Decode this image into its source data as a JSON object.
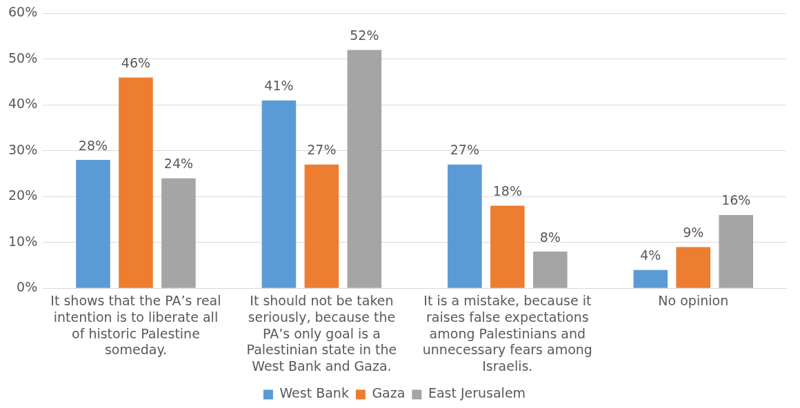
{
  "chart_data": {
    "type": "bar",
    "categories": [
      "It shows that the PA’s real intention is to liberate all of historic Palestine someday.",
      "It should not be taken seriously, because the PA’s only goal is a Palestinian state in the West Bank and Gaza.",
      "It is a mistake, because it raises false expectations among Palestinians and unnecessary fears among Israelis.",
      "No opinion"
    ],
    "series": [
      {
        "name": "West Bank",
        "color": "#5b9bd5",
        "values": [
          28,
          41,
          27,
          4
        ],
        "value_labels": [
          "28%",
          "41%",
          "27%",
          "4%"
        ]
      },
      {
        "name": "Gaza",
        "color": "#ed7d31",
        "values": [
          46,
          27,
          18,
          9
        ],
        "value_labels": [
          "46%",
          "27%",
          "18%",
          "9%"
        ]
      },
      {
        "name": "East Jerusalem",
        "color": "#a5a5a5",
        "values": [
          24,
          52,
          8,
          16
        ],
        "value_labels": [
          "24%",
          "52%",
          "8%",
          "16%"
        ]
      }
    ],
    "ylim": [
      0,
      60
    ],
    "yticks": [
      {
        "value": 0,
        "label": "0%"
      },
      {
        "value": 10,
        "label": "10%"
      },
      {
        "value": 20,
        "label": "20%"
      },
      {
        "value": 30,
        "label": "30%"
      },
      {
        "value": 40,
        "label": "40%"
      },
      {
        "value": 50,
        "label": "50%"
      },
      {
        "value": 60,
        "label": "60%"
      }
    ],
    "grid": "y",
    "legend": "bottom"
  }
}
